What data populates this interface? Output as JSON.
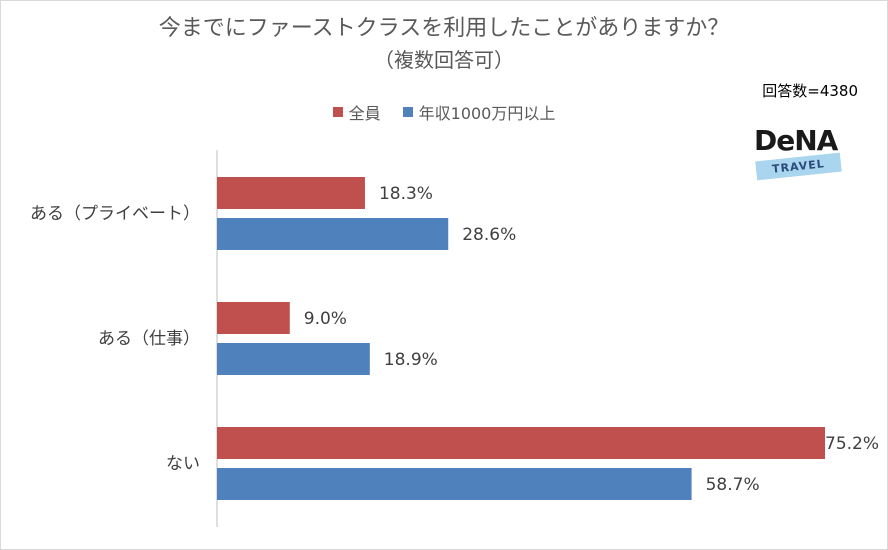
{
  "header": {
    "title": "今までにファーストクラスを利用したことがありますか？",
    "subtitle": "（複数回答可）",
    "count": "回答数=4380"
  },
  "logo": {
    "brand": "DeNA",
    "badge": "TRAVEL"
  },
  "colors": {
    "all": "#c0504d",
    "high_income": "#4f81bd",
    "axis": "#bfbfbf"
  },
  "chart_data": {
    "type": "bar",
    "orientation": "horizontal",
    "categories": [
      "ある（プライベート）",
      "ある（仕事）",
      "ない"
    ],
    "series": [
      {
        "name": "全員",
        "values": [
          18.3,
          9.0,
          75.2
        ],
        "labels": [
          "18.3%",
          "9.0%",
          "75.2%"
        ]
      },
      {
        "name": "年収1000万円以上",
        "values": [
          28.6,
          18.9,
          58.7
        ],
        "labels": [
          "28.6%",
          "18.9%",
          "58.7%"
        ]
      }
    ],
    "xlim": [
      0,
      75.2
    ],
    "grid": false,
    "legend_position": "top"
  }
}
